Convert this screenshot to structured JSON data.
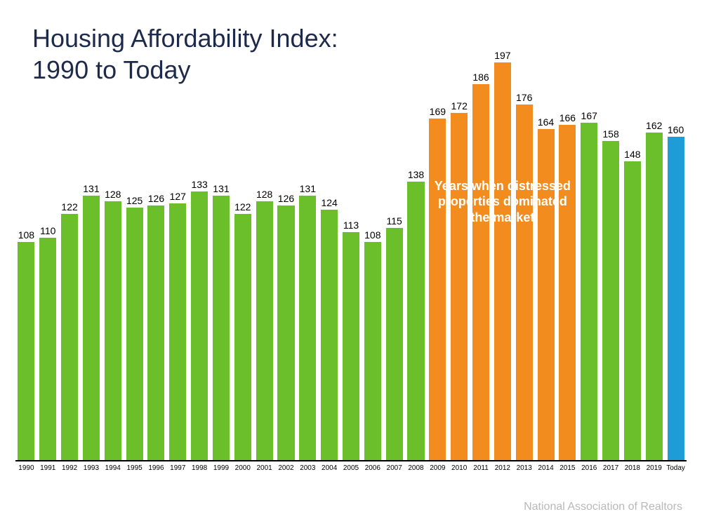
{
  "title_line1": "Housing Affordability Index:",
  "title_line2": "1990 to Today",
  "source": "National Association of Realtors",
  "chart": {
    "type": "bar",
    "ymax": 200,
    "bar_width_ratio": 0.78,
    "background_color": "#ffffff",
    "axis_color": "#000000",
    "value_label_fontsize": 14,
    "xtick_fontsize": 10,
    "title_color": "#1e2a4a",
    "title_fontsize": 36,
    "bar_colors": {
      "green": "#6bbf2b",
      "orange": "#f28c1f",
      "blue": "#1e9cd7"
    },
    "data": [
      {
        "label": "1990",
        "value": 108,
        "color": "green"
      },
      {
        "label": "1991",
        "value": 110,
        "color": "green"
      },
      {
        "label": "1992",
        "value": 122,
        "color": "green"
      },
      {
        "label": "1993",
        "value": 131,
        "color": "green"
      },
      {
        "label": "1994",
        "value": 128,
        "color": "green"
      },
      {
        "label": "1995",
        "value": 125,
        "color": "green"
      },
      {
        "label": "1996",
        "value": 126,
        "color": "green"
      },
      {
        "label": "1997",
        "value": 127,
        "color": "green"
      },
      {
        "label": "1998",
        "value": 133,
        "color": "green"
      },
      {
        "label": "1999",
        "value": 131,
        "color": "green"
      },
      {
        "label": "2000",
        "value": 122,
        "color": "green"
      },
      {
        "label": "2001",
        "value": 128,
        "color": "green"
      },
      {
        "label": "2002",
        "value": 126,
        "color": "green"
      },
      {
        "label": "2003",
        "value": 131,
        "color": "green"
      },
      {
        "label": "2004",
        "value": 124,
        "color": "green"
      },
      {
        "label": "2005",
        "value": 113,
        "color": "green"
      },
      {
        "label": "2006",
        "value": 108,
        "color": "green"
      },
      {
        "label": "2007",
        "value": 115,
        "color": "green"
      },
      {
        "label": "2008",
        "value": 138,
        "color": "green"
      },
      {
        "label": "2009",
        "value": 169,
        "color": "orange"
      },
      {
        "label": "2010",
        "value": 172,
        "color": "orange"
      },
      {
        "label": "2011",
        "value": 186,
        "color": "orange"
      },
      {
        "label": "2012",
        "value": 197,
        "color": "orange"
      },
      {
        "label": "2013",
        "value": 176,
        "color": "orange"
      },
      {
        "label": "2014",
        "value": 164,
        "color": "orange"
      },
      {
        "label": "2015",
        "value": 166,
        "color": "orange"
      },
      {
        "label": "2016",
        "value": 167,
        "color": "green"
      },
      {
        "label": "2017",
        "value": 158,
        "color": "green"
      },
      {
        "label": "2018",
        "value": 148,
        "color": "green"
      },
      {
        "label": "2019",
        "value": 162,
        "color": "green"
      },
      {
        "label": "Today",
        "value": 160,
        "color": "blue"
      }
    ],
    "annotation": {
      "text": "Years when distressed properties dominated the market",
      "color": "#ffffff",
      "fontsize": 18,
      "fontweight": 700,
      "start_index": 19,
      "end_index": 25,
      "center_value": 128
    }
  }
}
